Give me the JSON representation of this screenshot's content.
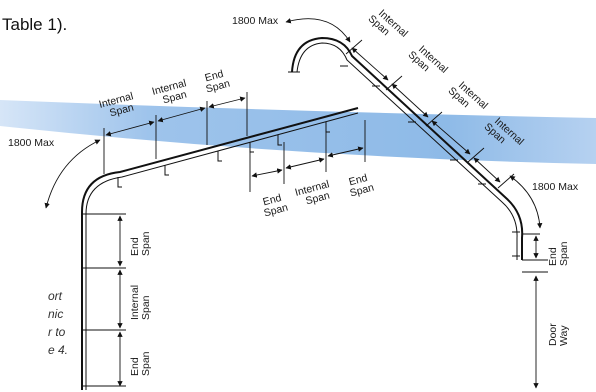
{
  "header": {
    "table_ref": "Table 1)."
  },
  "caption_fragment": [
    "ort",
    "nic",
    "r to",
    "e 4."
  ],
  "labels": {
    "max_left": "1800 Max",
    "max_top": "1800 Max",
    "max_right": "1800 Max",
    "internal": "Internal",
    "end": "End",
    "span": "Span",
    "door": "Door",
    "way": "Way"
  },
  "colors": {
    "band": "#7aaee3",
    "rail": "#111111"
  }
}
